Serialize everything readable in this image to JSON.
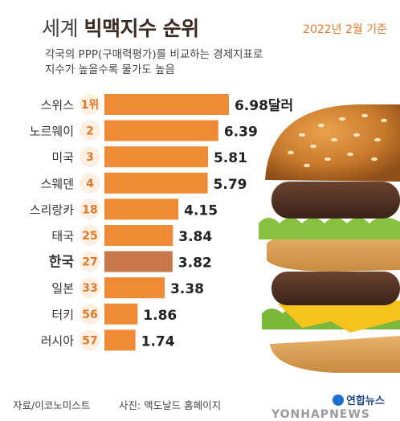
{
  "header": {
    "title_prefix": "세계",
    "title_main": "빅맥지수 순위",
    "date_note": "2022년 2월 기준",
    "subtitle_lines": [
      "각국의 PPP(구매력평가)를 비교하는 경제지표로",
      "지수가 높을수록 물가도 높음"
    ]
  },
  "chart_data": {
    "type": "bar",
    "orientation": "horizontal",
    "categories": [
      "스위스",
      "노르웨이",
      "미국",
      "스웨덴",
      "스리랑카",
      "태국",
      "한국",
      "일본",
      "터키",
      "러시아"
    ],
    "ranks": [
      "1위",
      "2",
      "3",
      "4",
      "18",
      "25",
      "27",
      "33",
      "56",
      "57"
    ],
    "values": [
      6.98,
      6.39,
      5.81,
      5.79,
      4.15,
      3.84,
      3.82,
      3.38,
      1.86,
      1.74
    ],
    "value_labels": [
      "6.98달러",
      "6.39",
      "5.81",
      "5.79",
      "4.15",
      "3.84",
      "3.82",
      "3.38",
      "1.86",
      "1.74"
    ],
    "unit": "달러",
    "highlight_category": "한국",
    "colors": {
      "bar": "#ef8a35",
      "highlight_bar": "#c8784a",
      "rank_circle": "#fdf0e2",
      "rank_text": "#e0782a"
    }
  },
  "footer": {
    "source": "자료/이코노미스트",
    "photo": "사진: 맥도날드 홈페이지",
    "logo": "연합뉴스",
    "watermark": "YONHAPNEWS"
  }
}
